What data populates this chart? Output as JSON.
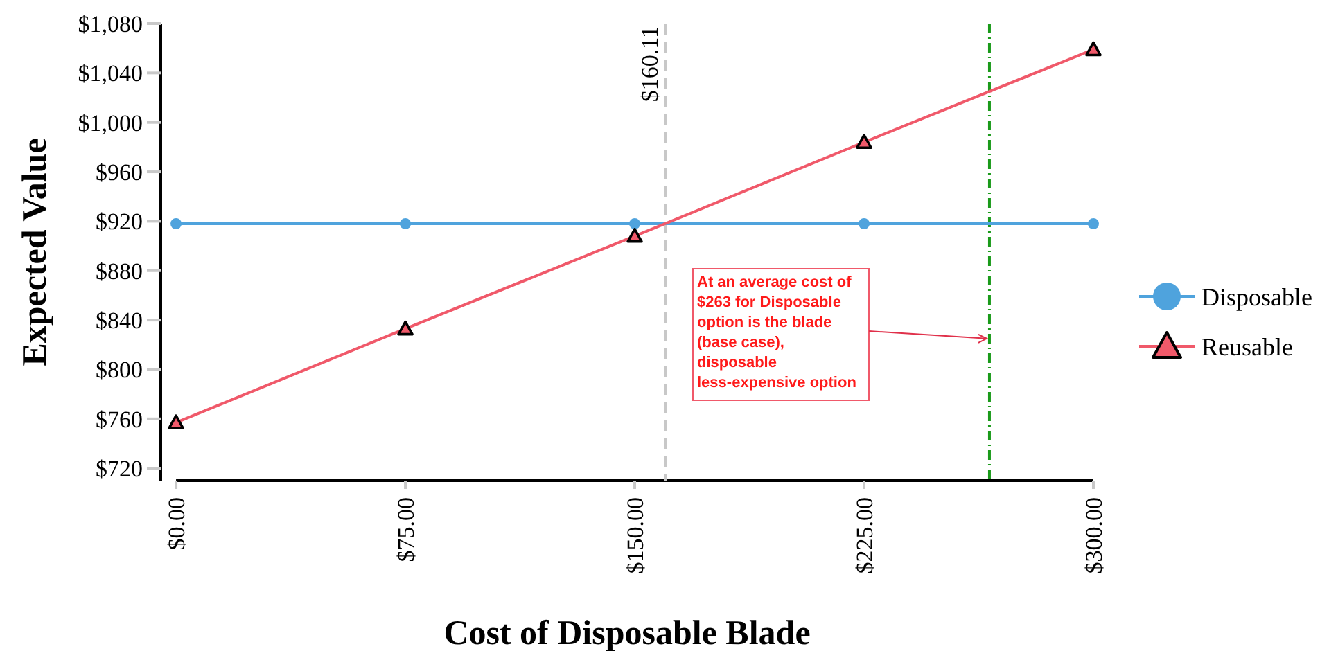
{
  "chart_data": {
    "type": "line",
    "xlabel": "Cost of Disposable Blade",
    "ylabel": "Expected Value",
    "x": [
      0,
      75,
      150,
      225,
      300
    ],
    "series": [
      {
        "name": "Disposable",
        "color": "#4fa3dd",
        "values": [
          918,
          918,
          918,
          918,
          918
        ],
        "marker": "circle"
      },
      {
        "name": "Reusable",
        "color": "#f0596a",
        "values": [
          757,
          833,
          908,
          984,
          1059
        ],
        "marker": "triangle"
      }
    ],
    "xlim": [
      -5,
      300
    ],
    "ylim": [
      710,
      1080
    ],
    "xticks": [
      {
        "value": 0,
        "label": "$0.00"
      },
      {
        "value": 75,
        "label": "$75.00"
      },
      {
        "value": 150,
        "label": "$150.00"
      },
      {
        "value": 225,
        "label": "$225.00"
      },
      {
        "value": 300,
        "label": "$300.00"
      }
    ],
    "yticks": [
      {
        "value": 720,
        "label": "$720"
      },
      {
        "value": 760,
        "label": "$760"
      },
      {
        "value": 800,
        "label": "$800"
      },
      {
        "value": 840,
        "label": "$840"
      },
      {
        "value": 880,
        "label": "$880"
      },
      {
        "value": 920,
        "label": "$920"
      },
      {
        "value": 960,
        "label": "$960"
      },
      {
        "value": 1000,
        "label": "$1,000"
      },
      {
        "value": 1040,
        "label": "$1,040"
      },
      {
        "value": 1080,
        "label": "$1,080"
      }
    ],
    "ref_lines": [
      {
        "axis": "x",
        "value": 160.11,
        "label": "$160.11",
        "color": "#c8c8c8",
        "line_style": "dashed"
      },
      {
        "axis": "x",
        "value": 266,
        "color": "#1a9a1a",
        "line_style": "dashdot"
      }
    ],
    "annotations": [
      {
        "text": "At an average cost of $263 for Disposable option is the blade (base case), disposable less-expensive option",
        "x": 266,
        "y": 825
      }
    ],
    "legend": "right",
    "grid": false
  }
}
